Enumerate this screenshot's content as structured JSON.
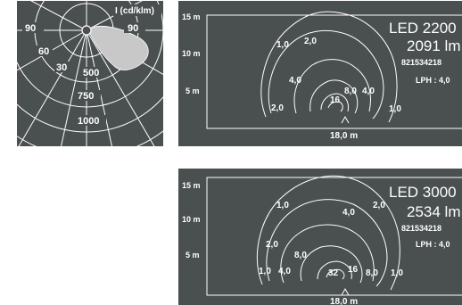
{
  "polar": {
    "unit_label": "I (cd/klm)",
    "angle_labels": [
      "90",
      "90",
      "60",
      "30"
    ],
    "ring_labels": [
      "500",
      "750",
      "1000"
    ],
    "colors": {
      "background": "#4a4f50",
      "lines": "#ffffff",
      "lobe": "#c8c8c8"
    }
  },
  "iso1": {
    "y_ticks": [
      "15 m",
      "10 m",
      "5 m"
    ],
    "x_label": "18,0 m",
    "title": "LED 2200",
    "lumens": "2091 lm",
    "code": "821534218",
    "lph": "LPH : 4,0",
    "contour_labels": [
      "1,0",
      "2,0",
      "4,0",
      "8,0",
      "16",
      "2,0",
      "4,0",
      "1,0"
    ]
  },
  "iso2": {
    "y_ticks": [
      "15 m",
      "10 m",
      "5 m"
    ],
    "x_label": "18,0 m",
    "title": "LED 3000",
    "lumens": "2534 lm",
    "code": "821534218",
    "lph": "LPH : 4,0",
    "contour_labels": [
      "1,0",
      "4,0",
      "2,0",
      "2,0",
      "8,0",
      "32",
      "16",
      "8,0",
      "1,0",
      "4,0",
      "1,0"
    ]
  }
}
